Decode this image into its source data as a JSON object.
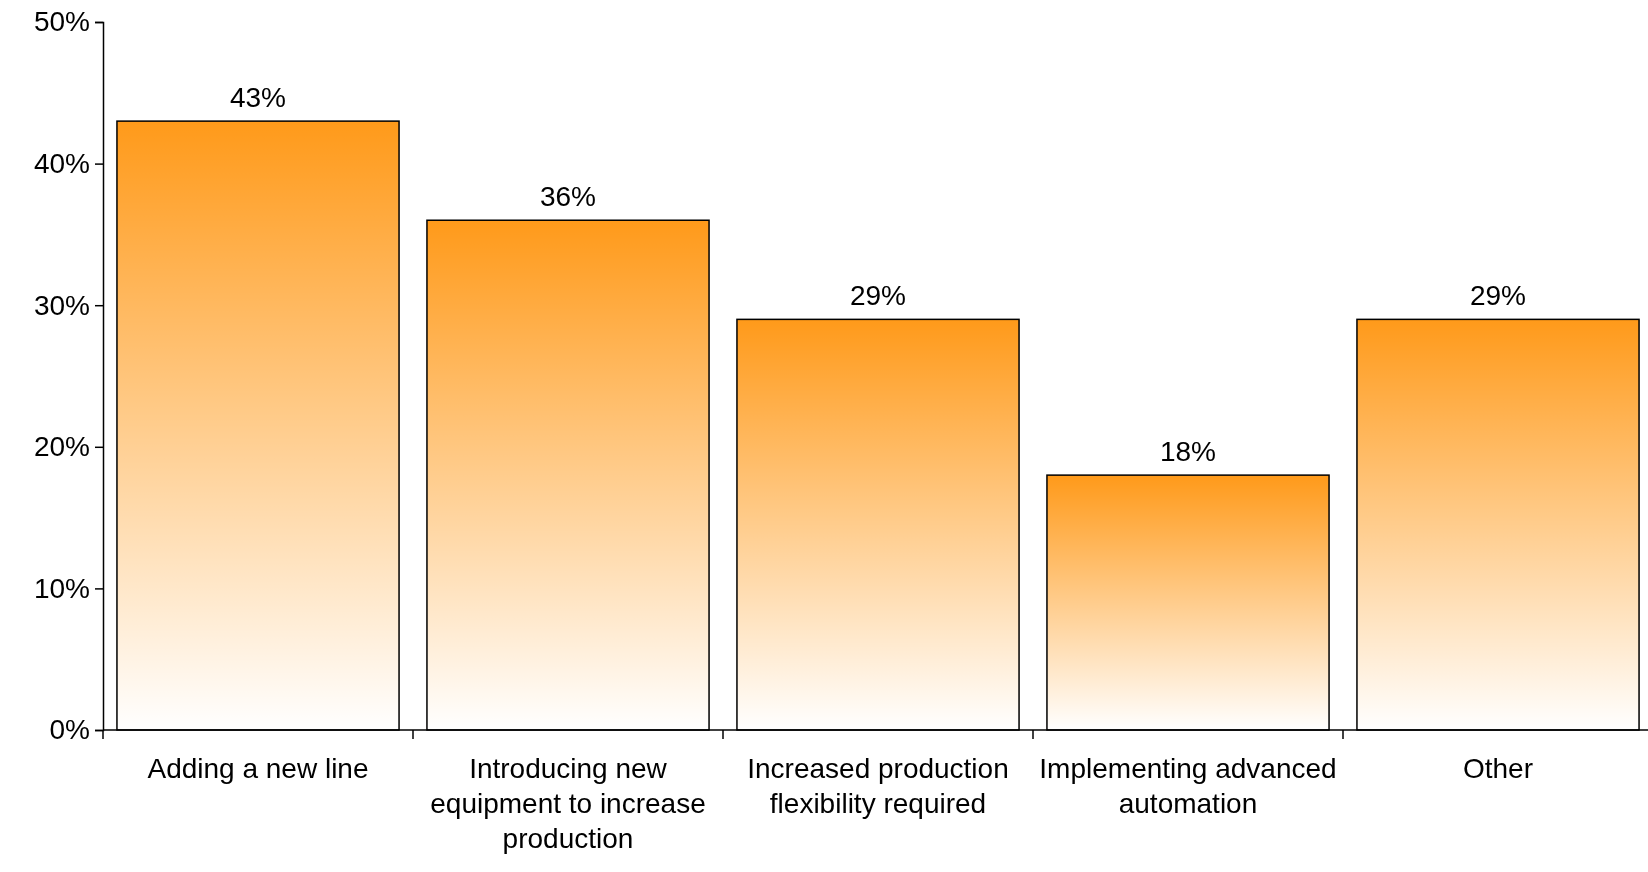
{
  "chart_data": {
    "type": "bar",
    "categories": [
      "Adding a new line",
      "Introducing new equipment to increase production",
      "Increased production flexibility required",
      "Implementing advanced automation",
      "Other"
    ],
    "values": [
      43,
      36,
      29,
      18,
      29
    ],
    "value_labels": [
      "43%",
      "36%",
      "29%",
      "18%",
      "29%"
    ],
    "color": "#ff9a1a",
    "ylim": [
      0,
      50
    ],
    "yticks": [
      {
        "value": 0,
        "label": "0%"
      },
      {
        "value": 10,
        "label": "10%"
      },
      {
        "value": 20,
        "label": "20%"
      },
      {
        "value": 30,
        "label": "30%"
      },
      {
        "value": 40,
        "label": "40%"
      },
      {
        "value": 50,
        "label": "50%"
      }
    ],
    "grid": false
  }
}
